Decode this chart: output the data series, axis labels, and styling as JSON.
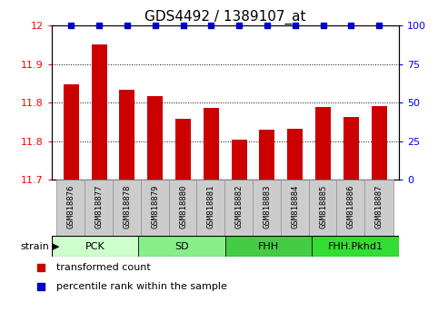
{
  "title": "GDS4492 / 1389107_at",
  "samples": [
    "GSM818876",
    "GSM818877",
    "GSM818878",
    "GSM818879",
    "GSM818880",
    "GSM818881",
    "GSM818882",
    "GSM818883",
    "GSM818884",
    "GSM818885",
    "GSM818886",
    "GSM818887"
  ],
  "bar_values": [
    11.885,
    11.963,
    11.875,
    11.863,
    11.818,
    11.84,
    11.778,
    11.797,
    11.8,
    11.842,
    11.822,
    11.843
  ],
  "percentile_values": [
    100,
    100,
    100,
    100,
    100,
    100,
    100,
    100,
    100,
    100,
    100,
    100
  ],
  "bar_color": "#cc0000",
  "percentile_color": "#0000cc",
  "ylim_left": [
    11.7,
    12.0
  ],
  "ylim_right": [
    0,
    100
  ],
  "yticks_left": [
    11.7,
    11.775,
    11.85,
    11.925,
    12.0
  ],
  "yticks_right": [
    0,
    25,
    50,
    75,
    100
  ],
  "groups": [
    {
      "label": "PCK",
      "start": 0,
      "end": 3,
      "color": "#ccffcc"
    },
    {
      "label": "SD",
      "start": 3,
      "end": 6,
      "color": "#88ee88"
    },
    {
      "label": "FHH",
      "start": 6,
      "end": 9,
      "color": "#44cc44"
    },
    {
      "label": "FHH.Pkhd1",
      "start": 9,
      "end": 12,
      "color": "#33dd33"
    }
  ],
  "group_row_label": "strain",
  "legend_items": [
    {
      "label": "transformed count",
      "color": "#cc0000"
    },
    {
      "label": "percentile rank within the sample",
      "color": "#0000cc"
    }
  ],
  "bar_width": 0.55,
  "background_color": "#ffffff",
  "xticklabel_bg": "#cccccc",
  "xticklabel_fontsize": 6.5,
  "ylabel_left_fontsize": 8,
  "ylabel_right_fontsize": 8,
  "title_fontsize": 11
}
